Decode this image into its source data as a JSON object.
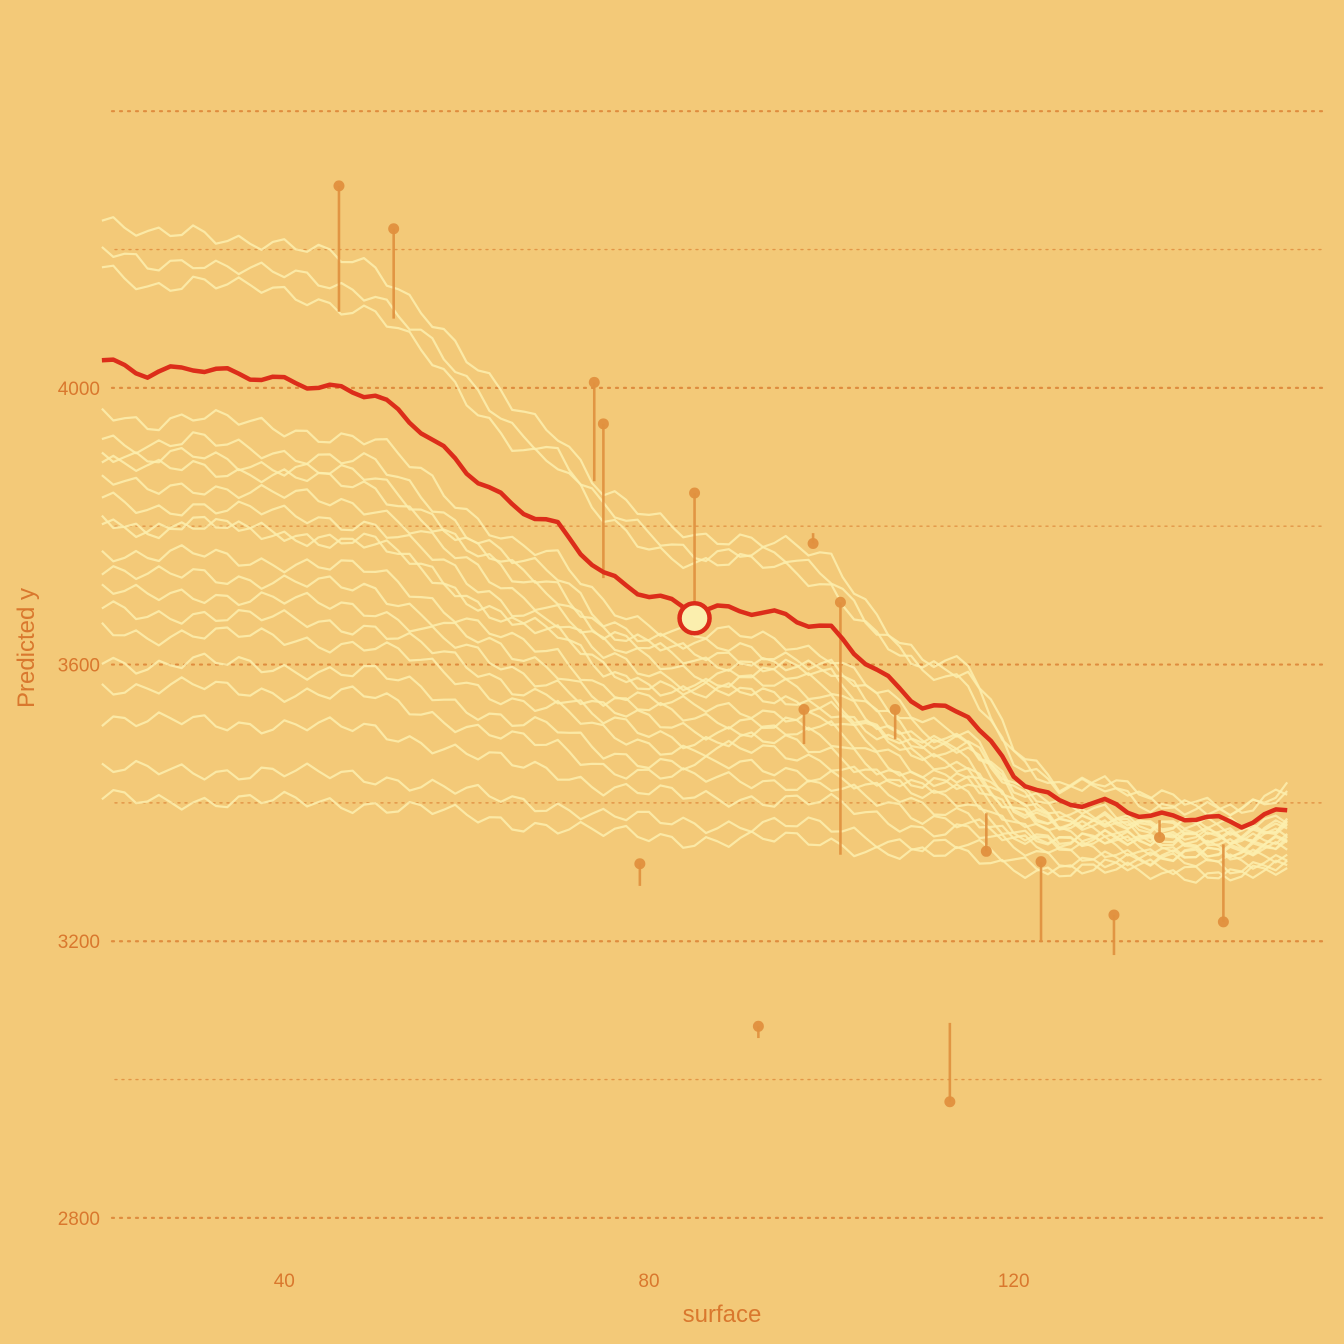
{
  "chart_data": {
    "type": "line",
    "xlabel": "surface",
    "ylabel": "Predicted y",
    "x_ticks": [
      40,
      80,
      120
    ],
    "y_ticks": [
      2800,
      3200,
      3600,
      4000
    ],
    "xlim": [
      16.5,
      152.5
    ],
    "ylim": [
      2690,
      4500
    ],
    "grid": "horizontal dotted",
    "colors": {
      "background": "#f3c978",
      "grid": "#de8a3c",
      "ice_lines": "#fbefae",
      "highlight_line": "#dc2d1a",
      "residual": "#e0903e",
      "text": "#d9782e"
    },
    "x": [
      20,
      25,
      30,
      35,
      40,
      45,
      50,
      55,
      60,
      65,
      70,
      75,
      80,
      85,
      90,
      95,
      100,
      105,
      110,
      115,
      120,
      125,
      130,
      135,
      140,
      145,
      150
    ],
    "ice_offsets": [
      0.28,
      0.22,
      0.18,
      -0.1,
      -0.15,
      -0.18,
      -0.2,
      -0.24,
      -0.28,
      -0.32,
      -0.32,
      -0.38,
      -0.42,
      -0.46,
      -0.5,
      -0.54,
      -0.6,
      -0.65,
      -0.72,
      -0.82,
      -0.88
    ],
    "highlight": {
      "name": "",
      "y": [
        4040,
        4020,
        4030,
        4020,
        4010,
        4000,
        3990,
        3940,
        3880,
        3830,
        3800,
        3730,
        3700,
        3680,
        3680,
        3670,
        3650,
        3590,
        3540,
        3530,
        3440,
        3400,
        3400,
        3380,
        3380,
        3370,
        3390
      ],
      "point": {
        "x": 85,
        "y": 3667
      }
    },
    "observations": [
      {
        "x": 46,
        "y": 4292,
        "fitted": 4110
      },
      {
        "x": 52,
        "y": 4230,
        "fitted": 4100
      },
      {
        "x": 74,
        "y": 4008,
        "fitted": 3865
      },
      {
        "x": 75,
        "y": 3948,
        "fitted": 3725
      },
      {
        "x": 85,
        "y": 3848,
        "fitted": 3690
      },
      {
        "x": 97,
        "y": 3535,
        "fitted": 3485
      },
      {
        "x": 98,
        "y": 3775,
        "fitted": 3790
      },
      {
        "x": 101,
        "y": 3690,
        "fitted": 3325
      },
      {
        "x": 107,
        "y": 3535,
        "fitted": 3492
      },
      {
        "x": 79,
        "y": 3312,
        "fitted": 3280
      },
      {
        "x": 92,
        "y": 3077,
        "fitted": 3060
      },
      {
        "x": 113,
        "y": 2968,
        "fitted": 3082
      },
      {
        "x": 117,
        "y": 3330,
        "fitted": 3385
      },
      {
        "x": 123,
        "y": 3315,
        "fitted": 3200
      },
      {
        "x": 131,
        "y": 3238,
        "fitted": 3180
      },
      {
        "x": 136,
        "y": 3350,
        "fitted": 3375
      },
      {
        "x": 143,
        "y": 3228,
        "fitted": 3340
      }
    ]
  }
}
